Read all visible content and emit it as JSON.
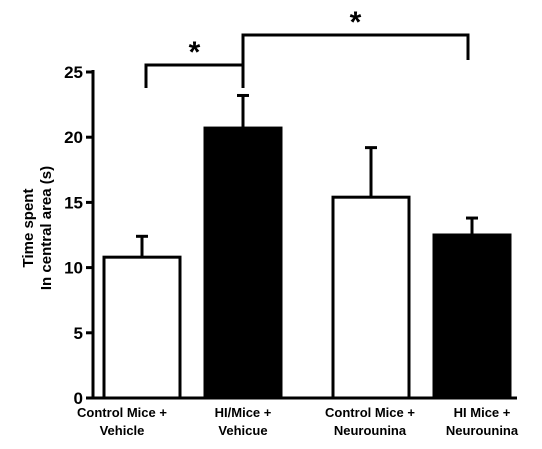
{
  "chart_data": {
    "type": "bar",
    "title": "",
    "xlabel": "",
    "ylabel": [
      "Time spent",
      "In central area (s)"
    ],
    "ylim": [
      0,
      25
    ],
    "yticks": [
      0,
      5,
      10,
      15,
      20,
      25
    ],
    "grid": false,
    "legend": "none",
    "categories": [
      [
        "Control Mice +",
        "Vehicle"
      ],
      [
        "HI/Mice +",
        "Vehicue"
      ],
      [
        "Control Mice +",
        "Neurounina"
      ],
      [
        "HI Mice +",
        "Neurounina"
      ]
    ],
    "values": [
      10.8,
      20.7,
      15.4,
      12.5
    ],
    "errors": [
      1.6,
      2.5,
      3.8,
      1.3
    ],
    "fills": [
      "#ffffff",
      "#000000",
      "#ffffff",
      "#000000"
    ],
    "significance": [
      {
        "from": 0,
        "to": 1,
        "label": "*"
      },
      {
        "from": 1,
        "to": 3,
        "label": "*"
      }
    ]
  }
}
